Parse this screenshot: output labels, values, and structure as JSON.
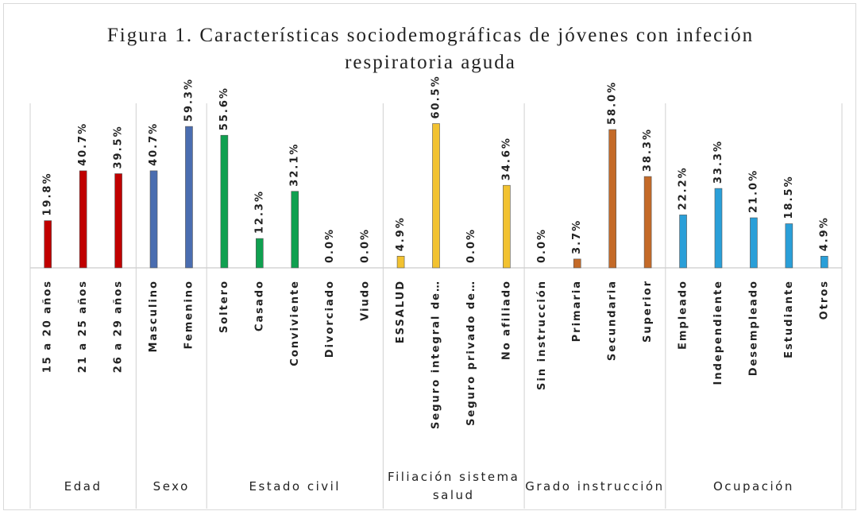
{
  "chart_data": {
    "type": "bar",
    "title": "Figura 1. Características sociodemográficas de jóvenes con infeción respiratoria aguda",
    "groups": [
      {
        "name": "Edad",
        "color": "#c00000",
        "categories": [
          "15 a 20 años",
          "21 a 25 años",
          "26 a 29 años"
        ],
        "values": [
          19.8,
          40.7,
          39.5
        ],
        "value_labels": [
          "19.8%",
          "40.7%",
          "39.5%"
        ]
      },
      {
        "name": "Sexo",
        "color": "#4a6db0",
        "categories": [
          "Masculino",
          "Femenino"
        ],
        "values": [
          40.7,
          59.3
        ],
        "value_labels": [
          "40.7%",
          "59.3%"
        ]
      },
      {
        "name": "Estado civil",
        "color": "#10a050",
        "categories": [
          "Soltero",
          "Casado",
          "Conviviente",
          "Divorciado",
          "Viudo"
        ],
        "values": [
          55.6,
          12.3,
          32.1,
          0,
          0
        ],
        "value_labels": [
          "55.6%",
          "12.3%",
          "32.1%",
          "0.0%",
          "0.0%"
        ]
      },
      {
        "name": "Filiación sistema salud",
        "color": "#f2c230",
        "categories": [
          "ESSALUD",
          "Seguro integral de…",
          "Seguro privado de…",
          "No afiliado"
        ],
        "values": [
          4.9,
          60.5,
          0,
          34.6
        ],
        "value_labels": [
          "4.9%",
          "60.5%",
          "0.0%",
          "34.6%"
        ]
      },
      {
        "name": "Grado instrucción",
        "color": "#c46a28",
        "categories": [
          "Sin instrucción",
          "Primaria",
          "Secundaria",
          "Superior"
        ],
        "values": [
          0,
          3.7,
          58,
          38.3
        ],
        "value_labels": [
          "0.0%",
          "3.7%",
          "58.0%",
          "38.3%"
        ]
      },
      {
        "name": "Ocupación",
        "color": "#2a9fd8",
        "categories": [
          "Empleado",
          "Independiente",
          "Desempleado",
          "Estudiante",
          "Otros"
        ],
        "values": [
          22.2,
          33.3,
          21,
          18.5,
          4.9
        ],
        "value_labels": [
          "22.2%",
          "33.3%",
          "21.0%",
          "18.5%",
          "4.9%"
        ]
      }
    ]
  }
}
